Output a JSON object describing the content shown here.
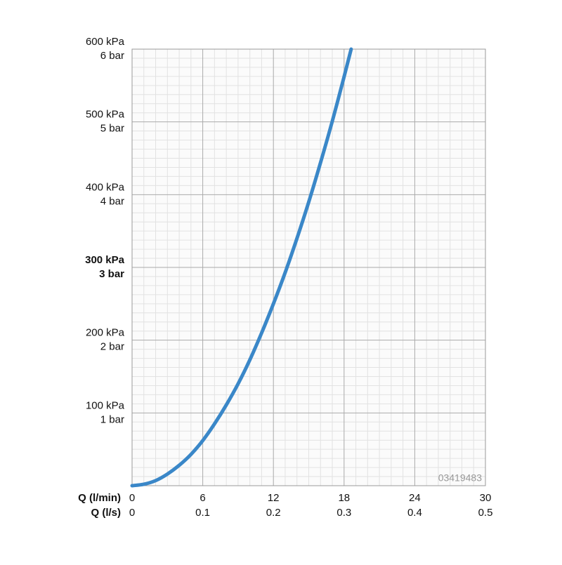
{
  "chart_data": {
    "type": "line",
    "watermark": "03419483",
    "x_label": "Q (l/min)",
    "x2_label": "Q (l/s)",
    "xlim": [
      0,
      30
    ],
    "ylim": [
      0,
      600
    ],
    "xticks": [
      0,
      6,
      12,
      18,
      24,
      30
    ],
    "x2ticks": [
      0,
      {
        "value": 6,
        "label": "0.1"
      },
      {
        "value": 12,
        "label": "0.2"
      },
      {
        "value": 18,
        "label": "0.3"
      },
      {
        "value": 24,
        "label": "0.4"
      },
      {
        "value": 30,
        "label": "0.5"
      }
    ],
    "yticks": [
      {
        "value": 100,
        "label": "100 kPa"
      },
      {
        "value": 200,
        "label": "200 kPa"
      },
      {
        "value": 300,
        "label": "300 kPa"
      },
      {
        "value": 400,
        "label": "400 kPa"
      },
      {
        "value": 500,
        "label": "500 kPa"
      },
      {
        "value": 600,
        "label": "600 kPa"
      }
    ],
    "ybar_labels": [
      {
        "value": 100,
        "label": "1 bar"
      },
      {
        "value": 200,
        "label": "2 bar"
      },
      {
        "value": 300,
        "label": "3 bar"
      },
      {
        "value": 400,
        "label": "4 bar"
      },
      {
        "value": 500,
        "label": "5 bar"
      },
      {
        "value": 600,
        "label": "6 bar"
      }
    ],
    "bold_value": 300,
    "grid": true,
    "series": [
      {
        "color": "#3a87c8",
        "x": [
          0,
          1,
          2,
          3,
          4,
          5,
          6,
          7,
          8,
          9,
          10,
          11,
          12,
          13,
          14,
          15,
          16,
          17,
          18,
          18.6
        ],
        "values": [
          0,
          2,
          7,
          16,
          28,
          43,
          62,
          85,
          111,
          140,
          173,
          210,
          250,
          293,
          340,
          390,
          444,
          501,
          562,
          600
        ]
      }
    ]
  }
}
